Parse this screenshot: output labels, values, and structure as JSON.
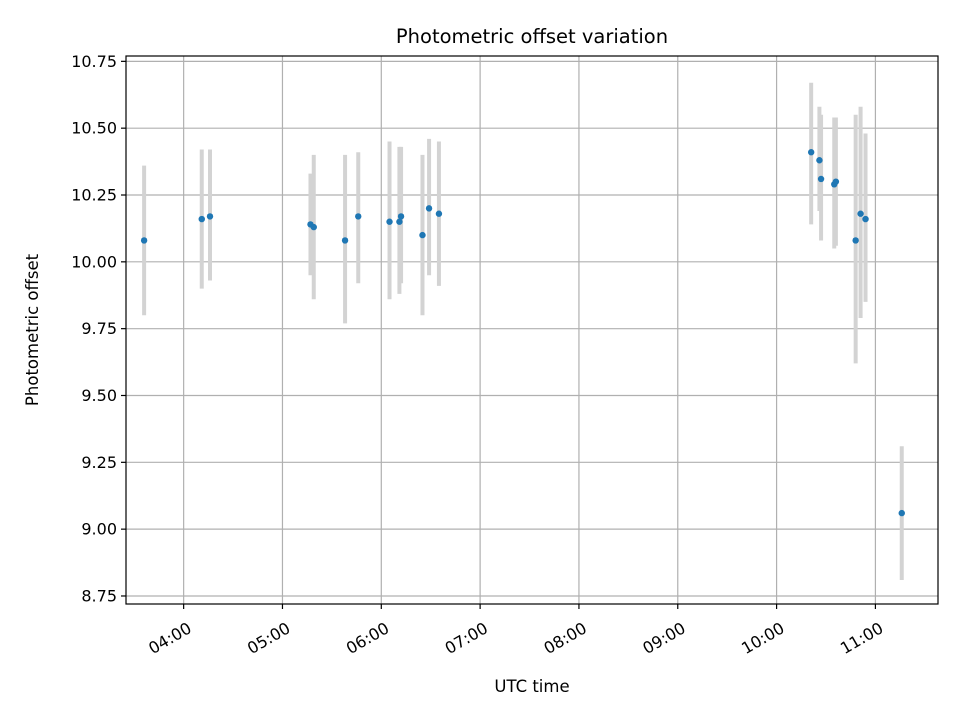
{
  "chart_data": {
    "type": "scatter",
    "title": "Photometric offset variation",
    "xlabel": "UTC time",
    "ylabel": "Photometric offset",
    "x_axis_type": "time",
    "xlim": [
      "03:25",
      "11:38"
    ],
    "ylim": [
      8.72,
      10.77
    ],
    "grid": true,
    "legend": "none",
    "marker_color": "#1f77b4",
    "errorbar_color": "#d3d3d3",
    "x_ticks": [
      {
        "value": "04:00",
        "label": "04:00"
      },
      {
        "value": "05:00",
        "label": "05:00"
      },
      {
        "value": "06:00",
        "label": "06:00"
      },
      {
        "value": "07:00",
        "label": "07:00"
      },
      {
        "value": "08:00",
        "label": "08:00"
      },
      {
        "value": "09:00",
        "label": "09:00"
      },
      {
        "value": "10:00",
        "label": "10:00"
      },
      {
        "value": "11:00",
        "label": "11:00"
      }
    ],
    "y_ticks": [
      {
        "value": 8.75,
        "label": "8.75"
      },
      {
        "value": 9.0,
        "label": "9.00"
      },
      {
        "value": 9.25,
        "label": "9.25"
      },
      {
        "value": 9.5,
        "label": "9.50"
      },
      {
        "value": 9.75,
        "label": "9.75"
      },
      {
        "value": 10.0,
        "label": "10.00"
      },
      {
        "value": 10.25,
        "label": "10.25"
      },
      {
        "value": 10.5,
        "label": "10.50"
      },
      {
        "value": 10.75,
        "label": "10.75"
      }
    ],
    "points": [
      {
        "x": "03:36",
        "y": 10.08,
        "err_low": 9.8,
        "err_high": 10.36
      },
      {
        "x": "04:11",
        "y": 10.16,
        "err_low": 9.9,
        "err_high": 10.42
      },
      {
        "x": "04:16",
        "y": 10.17,
        "err_low": 9.93,
        "err_high": 10.42
      },
      {
        "x": "05:17",
        "y": 10.14,
        "err_low": 9.95,
        "err_high": 10.33
      },
      {
        "x": "05:19",
        "y": 10.13,
        "err_low": 9.86,
        "err_high": 10.4
      },
      {
        "x": "05:38",
        "y": 10.08,
        "err_low": 9.77,
        "err_high": 10.4
      },
      {
        "x": "05:46",
        "y": 10.17,
        "err_low": 9.92,
        "err_high": 10.41
      },
      {
        "x": "06:05",
        "y": 10.15,
        "err_low": 9.86,
        "err_high": 10.45
      },
      {
        "x": "06:11",
        "y": 10.15,
        "err_low": 9.88,
        "err_high": 10.43
      },
      {
        "x": "06:12",
        "y": 10.17,
        "err_low": 9.92,
        "err_high": 10.43
      },
      {
        "x": "06:25",
        "y": 10.1,
        "err_low": 9.8,
        "err_high": 10.4
      },
      {
        "x": "06:29",
        "y": 10.2,
        "err_low": 9.95,
        "err_high": 10.46
      },
      {
        "x": "06:35",
        "y": 10.18,
        "err_low": 9.91,
        "err_high": 10.45
      },
      {
        "x": "10:21",
        "y": 10.41,
        "err_low": 10.14,
        "err_high": 10.67
      },
      {
        "x": "10:26",
        "y": 10.38,
        "err_low": 10.19,
        "err_high": 10.58
      },
      {
        "x": "10:27",
        "y": 10.31,
        "err_low": 10.08,
        "err_high": 10.55
      },
      {
        "x": "10:35",
        "y": 10.29,
        "err_low": 10.05,
        "err_high": 10.54
      },
      {
        "x": "10:36",
        "y": 10.3,
        "err_low": 10.06,
        "err_high": 10.54
      },
      {
        "x": "10:48",
        "y": 10.08,
        "err_low": 9.62,
        "err_high": 10.55
      },
      {
        "x": "10:51",
        "y": 10.18,
        "err_low": 9.79,
        "err_high": 10.58
      },
      {
        "x": "10:54",
        "y": 10.16,
        "err_low": 9.85,
        "err_high": 10.48
      },
      {
        "x": "11:16",
        "y": 9.06,
        "err_low": 8.81,
        "err_high": 9.31
      }
    ]
  }
}
